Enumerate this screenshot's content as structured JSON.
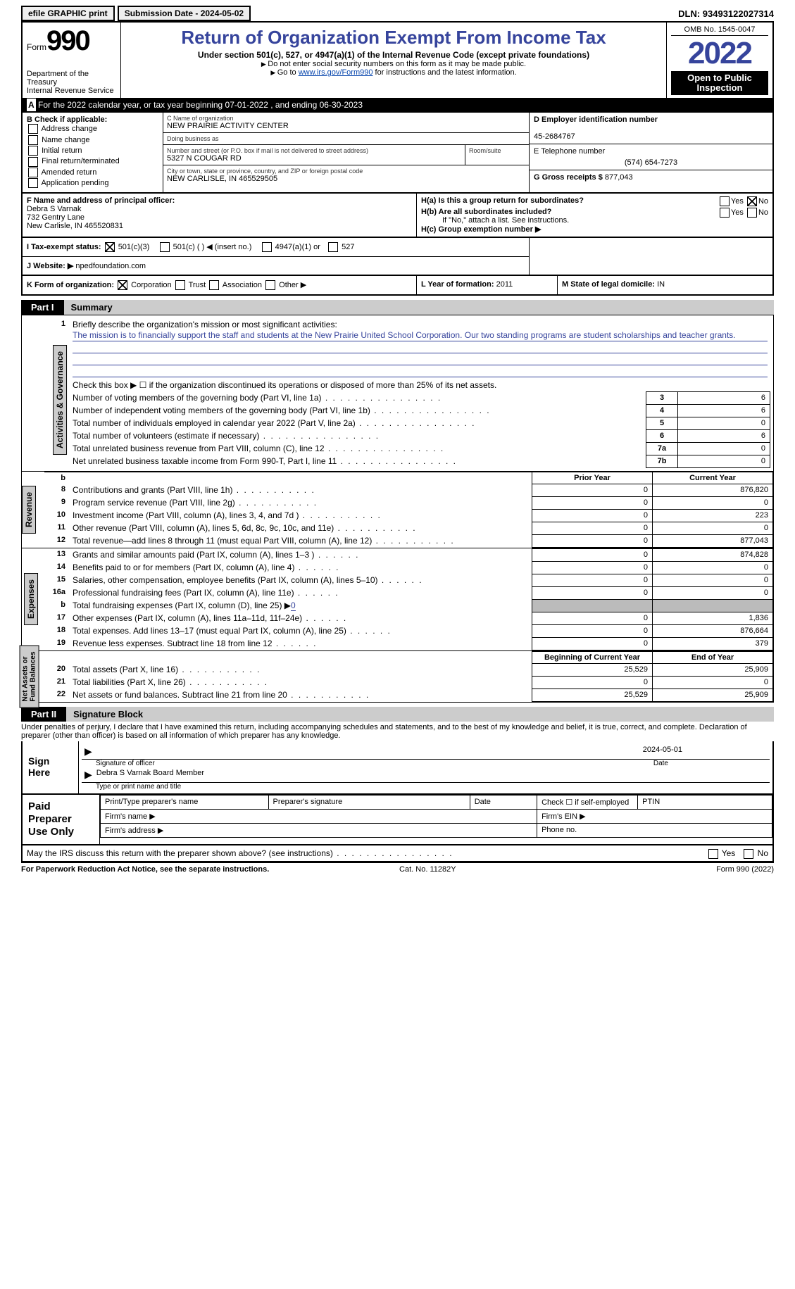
{
  "top": {
    "efile": "efile GRAPHIC print",
    "submission_label": "Submission Date - 2024-05-02",
    "dln_label": "DLN: 93493122027314"
  },
  "header": {
    "form_word": "Form",
    "form_num": "990",
    "dept": "Department of the Treasury\nInternal Revenue Service",
    "title": "Return of Organization Exempt From Income Tax",
    "subtitle": "Under section 501(c), 527, or 4947(a)(1) of the Internal Revenue Code (except private foundations)",
    "note1": "Do not enter social security numbers on this form as it may be made public.",
    "note2_pre": "Go to ",
    "note2_link": "www.irs.gov/Form990",
    "note2_post": " for instructions and the latest information.",
    "omb": "OMB No. 1545-0047",
    "year": "2022",
    "open_pub": "Open to Public Inspection"
  },
  "line_a": "For the 2022 calendar year, or tax year beginning 07-01-2022   , and ending 06-30-2023",
  "box_b": {
    "label": "B Check if applicable:",
    "opts": [
      "Address change",
      "Name change",
      "Initial return",
      "Final return/terminated",
      "Amended return",
      "Application pending"
    ]
  },
  "box_c": {
    "name_label": "C Name of organization",
    "name": "NEW PRAIRIE ACTIVITY CENTER",
    "dba_label": "Doing business as",
    "dba": "",
    "street_label": "Number and street (or P.O. box if mail is not delivered to street address)",
    "room_label": "Room/suite",
    "street": "5327 N COUGAR RD",
    "city_label": "City or town, state or province, country, and ZIP or foreign postal code",
    "city": "NEW CARLISLE, IN  465529505"
  },
  "box_d": {
    "label": "D Employer identification number",
    "val": "45-2684767"
  },
  "box_e": {
    "label": "E Telephone number",
    "val": "(574) 654-7273"
  },
  "box_g": {
    "label": "G Gross receipts $",
    "val": "877,043"
  },
  "box_f": {
    "label": "F  Name and address of principal officer:",
    "name": "Debra S Varnak",
    "addr1": "732 Gentry Lane",
    "addr2": "New Carlisle, IN  465520831"
  },
  "box_h": {
    "a": "H(a)  Is this a group return for subordinates?",
    "b": "H(b)  Are all subordinates included?",
    "b_note": "If \"No,\" attach a list. See instructions.",
    "c": "H(c)  Group exemption number ▶",
    "yes": "Yes",
    "no": "No"
  },
  "tax_status": {
    "label": "I  Tax-exempt status:",
    "c3": "501(c)(3)",
    "c": "501(c) (  ) ◀ (insert no.)",
    "a1": "4947(a)(1) or",
    "s527": "527"
  },
  "box_j": {
    "label": "J  Website: ▶",
    "val": " npedfoundation.com"
  },
  "box_k": {
    "label": "K Form of organization:",
    "corp": "Corporation",
    "trust": "Trust",
    "assoc": "Association",
    "other": "Other ▶"
  },
  "box_l": {
    "label": "L Year of formation:",
    "val": "2011"
  },
  "box_m": {
    "label": "M State of legal domicile:",
    "val": "IN"
  },
  "part1": {
    "tab": "Part I",
    "title": "Summary"
  },
  "summary": {
    "q1": "Briefly describe the organization's mission or most significant activities:",
    "mission": "The mission is to financially support the staff and students at the New Prairie United School Corporation. Our two standing programs are student scholarships and teacher grants.",
    "q2": "Check this box ▶ ☐  if the organization discontinued its operations or disposed of more than 25% of its net assets.",
    "rows_top": [
      {
        "n": "3",
        "t": "Number of voting members of the governing body (Part VI, line 1a)",
        "nb": "3",
        "v": "6"
      },
      {
        "n": "4",
        "t": "Number of independent voting members of the governing body (Part VI, line 1b)",
        "nb": "4",
        "v": "6"
      },
      {
        "n": "5",
        "t": "Total number of individuals employed in calendar year 2022 (Part V, line 2a)",
        "nb": "5",
        "v": "0"
      },
      {
        "n": "6",
        "t": "Total number of volunteers (estimate if necessary)",
        "nb": "6",
        "v": "6"
      },
      {
        "n": "7a",
        "t": "Total unrelated business revenue from Part VIII, column (C), line 12",
        "nb": "7a",
        "v": "0"
      },
      {
        "n": "",
        "t": "Net unrelated business taxable income from Form 990-T, Part I, line 11",
        "nb": "7b",
        "v": "0"
      }
    ],
    "col_prior": "Prior Year",
    "col_curr": "Current Year",
    "revenue": [
      {
        "n": "8",
        "t": "Contributions and grants (Part VIII, line 1h)",
        "p": "0",
        "c": "876,820"
      },
      {
        "n": "9",
        "t": "Program service revenue (Part VIII, line 2g)",
        "p": "0",
        "c": "0"
      },
      {
        "n": "10",
        "t": "Investment income (Part VIII, column (A), lines 3, 4, and 7d )",
        "p": "0",
        "c": "223"
      },
      {
        "n": "11",
        "t": "Other revenue (Part VIII, column (A), lines 5, 6d, 8c, 9c, 10c, and 11e)",
        "p": "0",
        "c": "0"
      },
      {
        "n": "12",
        "t": "Total revenue—add lines 8 through 11 (must equal Part VIII, column (A), line 12)",
        "p": "0",
        "c": "877,043"
      }
    ],
    "expenses": [
      {
        "n": "13",
        "t": "Grants and similar amounts paid (Part IX, column (A), lines 1–3 )",
        "p": "0",
        "c": "874,828"
      },
      {
        "n": "14",
        "t": "Benefits paid to or for members (Part IX, column (A), line 4)",
        "p": "0",
        "c": "0"
      },
      {
        "n": "15",
        "t": "Salaries, other compensation, employee benefits (Part IX, column (A), lines 5–10)",
        "p": "0",
        "c": "0"
      },
      {
        "n": "16a",
        "t": "Professional fundraising fees (Part IX, column (A), line 11e)",
        "p": "0",
        "c": "0"
      },
      {
        "n": "b",
        "t": "Total fundraising expenses (Part IX, column (D), line 25) ▶",
        "p": "",
        "c": "",
        "v0": "0"
      },
      {
        "n": "17",
        "t": "Other expenses (Part IX, column (A), lines 11a–11d, 11f–24e)",
        "p": "0",
        "c": "1,836"
      },
      {
        "n": "18",
        "t": "Total expenses. Add lines 13–17 (must equal Part IX, column (A), line 25)",
        "p": "0",
        "c": "876,664"
      },
      {
        "n": "19",
        "t": "Revenue less expenses. Subtract line 18 from line 12",
        "p": "0",
        "c": "379"
      }
    ],
    "col_begin": "Beginning of Current Year",
    "col_end": "End of Year",
    "net": [
      {
        "n": "20",
        "t": "Total assets (Part X, line 16)",
        "p": "25,529",
        "c": "25,909"
      },
      {
        "n": "21",
        "t": "Total liabilities (Part X, line 26)",
        "p": "0",
        "c": "0"
      },
      {
        "n": "22",
        "t": "Net assets or fund balances. Subtract line 21 from line 20",
        "p": "25,529",
        "c": "25,909"
      }
    ]
  },
  "vlabels": {
    "ag": "Activities & Governance",
    "rev": "Revenue",
    "exp": "Expenses",
    "net": "Net Assets or\nFund Balances"
  },
  "part2": {
    "tab": "Part II",
    "title": "Signature Block"
  },
  "sig": {
    "decl": "Under penalties of perjury, I declare that I have examined this return, including accompanying schedules and statements, and to the best of my knowledge and belief, it is true, correct, and complete. Declaration of preparer (other than officer) is based on all information of which preparer has any knowledge.",
    "here": "Sign Here",
    "off_sig": "Signature of officer",
    "date": "Date",
    "date_val": "2024-05-01",
    "name": "Debra S Varnak  Board Member",
    "name_lbl": "Type or print name and title"
  },
  "prep": {
    "left": "Paid Preparer Use Only",
    "r1": [
      "Print/Type preparer's name",
      "Preparer's signature",
      "Date",
      "Check ☐ if self-employed",
      "PTIN"
    ],
    "r2": [
      "Firm's name   ▶",
      "Firm's EIN ▶"
    ],
    "r3": [
      "Firm's address ▶",
      "Phone no."
    ]
  },
  "discuss": "May the IRS discuss this return with the preparer shown above? (see instructions)",
  "footer": {
    "l": "For Paperwork Reduction Act Notice, see the separate instructions.",
    "m": "Cat. No. 11282Y",
    "r": "Form 990 (2022)"
  }
}
